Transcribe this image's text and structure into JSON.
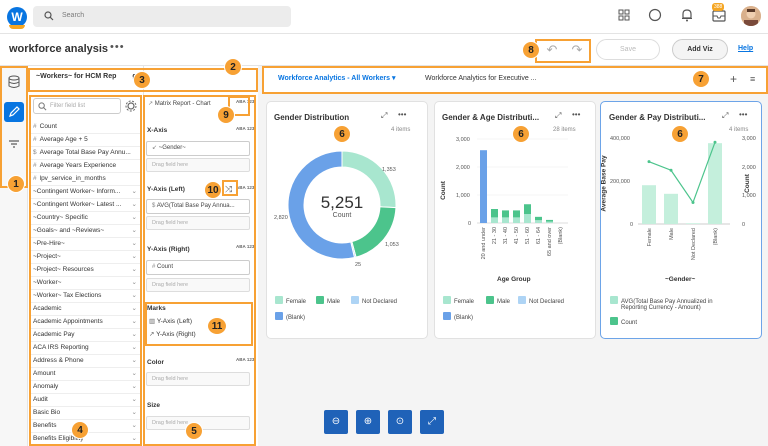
{
  "topbar": {
    "logo": "W",
    "search_placeholder": "Search",
    "notification_badge": "388"
  },
  "header": {
    "title": "workforce analysis",
    "menu": "•••",
    "save_label": "Save",
    "add_viz_label": "Add Viz",
    "help_label": "Help"
  },
  "field_panel": {
    "title": "~Workers~ for HCM Rep",
    "title_tail": "g",
    "filter_placeholder": "Filter field list",
    "fields": [
      {
        "prefix": "#",
        "label": "Count",
        "expand": false
      },
      {
        "prefix": "#",
        "label": "Average Age + 5",
        "expand": false
      },
      {
        "prefix": "$",
        "label": "Average Total Base Pay Annu...",
        "expand": false
      },
      {
        "prefix": "#",
        "label": "Average Years Experience",
        "expand": false
      },
      {
        "prefix": "#",
        "label": "lpv_service_in_months",
        "expand": false
      },
      {
        "prefix": "",
        "label": "~Contingent Worker~ Inform...",
        "expand": true
      },
      {
        "prefix": "",
        "label": "~Contingent Worker~ Latest ...",
        "expand": true
      },
      {
        "prefix": "",
        "label": "~Country~ Specific",
        "expand": true
      },
      {
        "prefix": "",
        "label": "~Goals~ and ~Reviews~",
        "expand": true
      },
      {
        "prefix": "",
        "label": "~Pre-Hire~",
        "expand": true
      },
      {
        "prefix": "",
        "label": "~Project~",
        "expand": true
      },
      {
        "prefix": "",
        "label": "~Project~ Resources",
        "expand": true
      },
      {
        "prefix": "",
        "label": "~Worker~",
        "expand": true
      },
      {
        "prefix": "",
        "label": "~Worker~ Tax Elections",
        "expand": true
      },
      {
        "prefix": "",
        "label": "Academic",
        "expand": true
      },
      {
        "prefix": "",
        "label": "Academic Appointments",
        "expand": true
      },
      {
        "prefix": "",
        "label": "Academic Pay",
        "expand": true
      },
      {
        "prefix": "",
        "label": "ACA IRS Reporting",
        "expand": true
      },
      {
        "prefix": "",
        "label": "Address & Phone",
        "expand": true
      },
      {
        "prefix": "",
        "label": "Amount",
        "expand": true
      },
      {
        "prefix": "",
        "label": "Anomaly",
        "expand": true
      },
      {
        "prefix": "",
        "label": "Audit",
        "expand": true
      },
      {
        "prefix": "",
        "label": "Basic Bio",
        "expand": true
      },
      {
        "prefix": "",
        "label": "Benefits",
        "expand": true
      },
      {
        "prefix": "",
        "label": "Benefits Eligibility",
        "expand": true
      }
    ]
  },
  "config_panel": {
    "chart_type": "Matrix Report - Chart",
    "x_axis_label": "X-Axis",
    "x_axis_value": "~Gender~",
    "y_left_label": "Y-Axis (Left)",
    "y_left_value": "AVG(Total Base Pay Annua...",
    "y_right_label": "Y-Axis (Right)",
    "y_right_value": "Count",
    "marks_label": "Marks",
    "marks_left": "Y-Axis (Left)",
    "marks_right": "Y-Axis (Right)",
    "color_label": "Color",
    "size_label": "Size",
    "drag_here": "Drag field here",
    "mini_icon": "ABA 123"
  },
  "tabs": {
    "active": "Workforce Analytics - All Workers",
    "inactive": "Workforce Analytics for Executive ...",
    "dropdown": "▾",
    "add": "+",
    "list": "≡"
  },
  "cards": [
    {
      "title": "Gender Distribution",
      "items": "4 items",
      "total": "5,251",
      "total_label": "Count",
      "labels": [
        "1,353",
        "1,053",
        "25",
        "2,820"
      ],
      "legend": [
        "Female",
        "Male",
        "Not Declared",
        "(Blank)"
      ]
    },
    {
      "title": "Gender & Age Distributi...",
      "items": "28 items",
      "ylabel": "Count",
      "xlabel": "Age Group",
      "yticks": [
        "3,000",
        "2,000",
        "1,000",
        "0"
      ],
      "legend": [
        "Female",
        "Male",
        "Not Declared",
        "(Blank)"
      ]
    },
    {
      "title": "Gender & Pay Distributi...",
      "items": "4 items",
      "ylabel_left": "Average Base Pay",
      "ylabel_right": "Count",
      "xlabel": "~Gender~",
      "yticks_left": [
        "400,000",
        "200,000",
        "0"
      ],
      "yticks_right": [
        "3,000",
        "2,000",
        "1,000",
        "0"
      ],
      "legend": [
        "AVG(Total Base Pay Annualized in",
        "Reporting Currency - Amount)",
        "Count"
      ]
    }
  ],
  "chart_data": [
    {
      "type": "pie",
      "title": "Gender Distribution",
      "categories": [
        "Female",
        "Male",
        "Not Declared",
        "(Blank)"
      ],
      "values": [
        1353,
        1053,
        25,
        2820
      ],
      "total": 5251
    },
    {
      "type": "bar",
      "title": "Gender & Age Distributi...",
      "xlabel": "Age Group",
      "ylabel": "Count",
      "ylim": [
        0,
        3000
      ],
      "categories": [
        "20 and under",
        "21 - 30",
        "31 - 40",
        "41 - 50",
        "51 - 60",
        "61 - 64",
        "65 and over",
        "(Blank)"
      ],
      "series": [
        {
          "name": "Female",
          "values": [
            0,
            200,
            200,
            200,
            320,
            100,
            50,
            0
          ]
        },
        {
          "name": "Male",
          "values": [
            0,
            300,
            250,
            250,
            350,
            120,
            60,
            0
          ]
        },
        {
          "name": "Not Declared",
          "values": [
            0,
            0,
            0,
            0,
            0,
            0,
            0,
            0
          ]
        },
        {
          "name": "(Blank)",
          "values": [
            2600,
            0,
            0,
            0,
            0,
            0,
            0,
            0
          ]
        }
      ]
    },
    {
      "type": "bar",
      "title": "Gender & Pay Distributi...",
      "xlabel": "~Gender~",
      "categories": [
        "Female",
        "Male",
        "Not Declared",
        "(Blank)"
      ],
      "series": [
        {
          "name": "AVG(Total Base Pay Annualized in Reporting Currency - Amount)",
          "axis": "left",
          "values": [
            290000,
            250000,
            100000,
            380000
          ]
        },
        {
          "name": "Count",
          "axis": "right",
          "values": [
            1353,
            1053,
            25,
            2820
          ]
        }
      ],
      "ylim_left": [
        0,
        400000
      ],
      "ylim_right": [
        0,
        3000
      ]
    }
  ],
  "zoom": [
    "zoom-out",
    "zoom-in",
    "zoom-fit",
    "fullscreen"
  ],
  "callouts": [
    "1",
    "2",
    "3",
    "4",
    "5",
    "6",
    "6",
    "6",
    "7",
    "8",
    "9",
    "10",
    "11"
  ],
  "colors": {
    "accent": "#0875e1",
    "female": "#a8e6cf",
    "male": "#4cc48c",
    "not_declared": "#aed4f5",
    "blank": "#6aa1e8",
    "callout": "#f7a134"
  }
}
